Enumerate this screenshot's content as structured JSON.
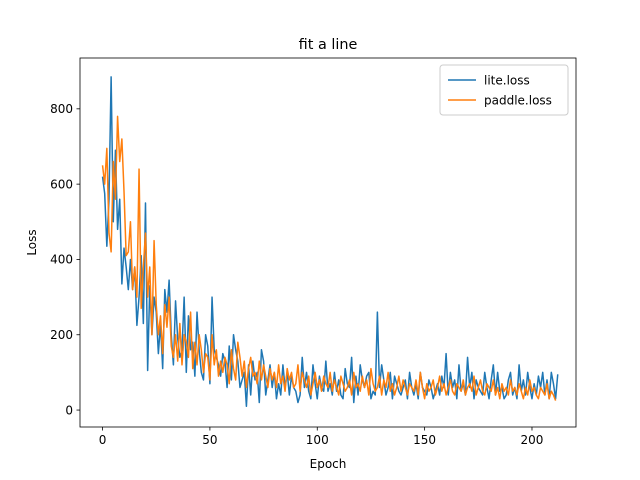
{
  "chart_data": {
    "type": "line",
    "title": "fit a line",
    "xlabel": "Epoch",
    "ylabel": "Loss",
    "xlim": [
      -10.5,
      220.5
    ],
    "ylim": [
      -45,
      935
    ],
    "xticks": [
      0,
      50,
      100,
      150,
      200
    ],
    "yticks": [
      0,
      200,
      400,
      600,
      800
    ],
    "grid": false,
    "legend_position": "top-right",
    "series": [
      {
        "name": "lite.loss",
        "color": "#1f77b4",
        "x_start": 0,
        "x_step": 1,
        "values": [
          620,
          575,
          435,
          560,
          885,
          500,
          690,
          480,
          560,
          335,
          430,
          380,
          320,
          400,
          320,
          380,
          225,
          300,
          410,
          230,
          550,
          105,
          330,
          200,
          300,
          260,
          150,
          230,
          110,
          320,
          260,
          345,
          200,
          120,
          290,
          190,
          140,
          160,
          300,
          100,
          250,
          160,
          180,
          90,
          260,
          160,
          100,
          80,
          200,
          170,
          70,
          300,
          160,
          140,
          120,
          90,
          150,
          130,
          60,
          170,
          80,
          200,
          160,
          130,
          60,
          80,
          100,
          10,
          120,
          40,
          130,
          80,
          100,
          20,
          160,
          130,
          40,
          80,
          120,
          60,
          100,
          30,
          70,
          40,
          120,
          60,
          100,
          40,
          90,
          60,
          50,
          20,
          40,
          140,
          60,
          100,
          50,
          30,
          120,
          70,
          30,
          90,
          60,
          50,
          130,
          50,
          70,
          40,
          100,
          50,
          80,
          40,
          30,
          110,
          70,
          60,
          140,
          20,
          90,
          40,
          120,
          80,
          60,
          90,
          100,
          30,
          50,
          40,
          260,
          60,
          120,
          80,
          40,
          60,
          100,
          30,
          90,
          70,
          50,
          40,
          60,
          80,
          30,
          100,
          60,
          40,
          70,
          30,
          100,
          60,
          50,
          40,
          80,
          60,
          30,
          50,
          70,
          40,
          90,
          60,
          150,
          40,
          100,
          60,
          80,
          30,
          120,
          50,
          70,
          40,
          140,
          60,
          100,
          30,
          80,
          60,
          50,
          40,
          100,
          60,
          30,
          80,
          120,
          40,
          100,
          50,
          60,
          30,
          40,
          80,
          100,
          40,
          60,
          30,
          120,
          50,
          80,
          40,
          100,
          60,
          30,
          70,
          40,
          90,
          60,
          100,
          40,
          80,
          30,
          100,
          70,
          30,
          95
        ]
      },
      {
        "name": "paddle.loss",
        "color": "#ff7f0e",
        "x_start": 0,
        "x_step": 1,
        "values": [
          650,
          600,
          695,
          470,
          420,
          660,
          560,
          780,
          660,
          720,
          580,
          410,
          420,
          500,
          320,
          380,
          300,
          640,
          270,
          380,
          470,
          300,
          380,
          200,
          450,
          280,
          200,
          250,
          150,
          280,
          220,
          300,
          170,
          140,
          200,
          130,
          230,
          120,
          200,
          180,
          140,
          260,
          110,
          180,
          120,
          200,
          160,
          100,
          150,
          140,
          80,
          200,
          120,
          160,
          90,
          130,
          100,
          140,
          120,
          70,
          160,
          110,
          80,
          180,
          140,
          90,
          130,
          60,
          110,
          140,
          90,
          100,
          70,
          130,
          80,
          120,
          90,
          60,
          110,
          80,
          100,
          60,
          120,
          70,
          90,
          50,
          110,
          80,
          100,
          60,
          70,
          120,
          50,
          100,
          80,
          60,
          90,
          40,
          70,
          100,
          60,
          80,
          50,
          90,
          70,
          60,
          100,
          50,
          80,
          60,
          40,
          90,
          70,
          50,
          60,
          80,
          40,
          100,
          60,
          70,
          50,
          90,
          60,
          80,
          40,
          110,
          70,
          50,
          60,
          90,
          40,
          80,
          60,
          100,
          50,
          70,
          40,
          60,
          90,
          50,
          80,
          60,
          40,
          70,
          60,
          50,
          80,
          40,
          100,
          60,
          30,
          70,
          50,
          60,
          80,
          40,
          60,
          90,
          50,
          70,
          40,
          60,
          80,
          50,
          40,
          70,
          60,
          50,
          80,
          40,
          60,
          70,
          50,
          90,
          40,
          60,
          80,
          50,
          40,
          70,
          60,
          50,
          80,
          40,
          60,
          30,
          70,
          50,
          60,
          40,
          80,
          50,
          60,
          40,
          70,
          50,
          30,
          60,
          40,
          80,
          50,
          60,
          40,
          30,
          60,
          50,
          40,
          70,
          30,
          50,
          40,
          25
        ]
      }
    ]
  }
}
